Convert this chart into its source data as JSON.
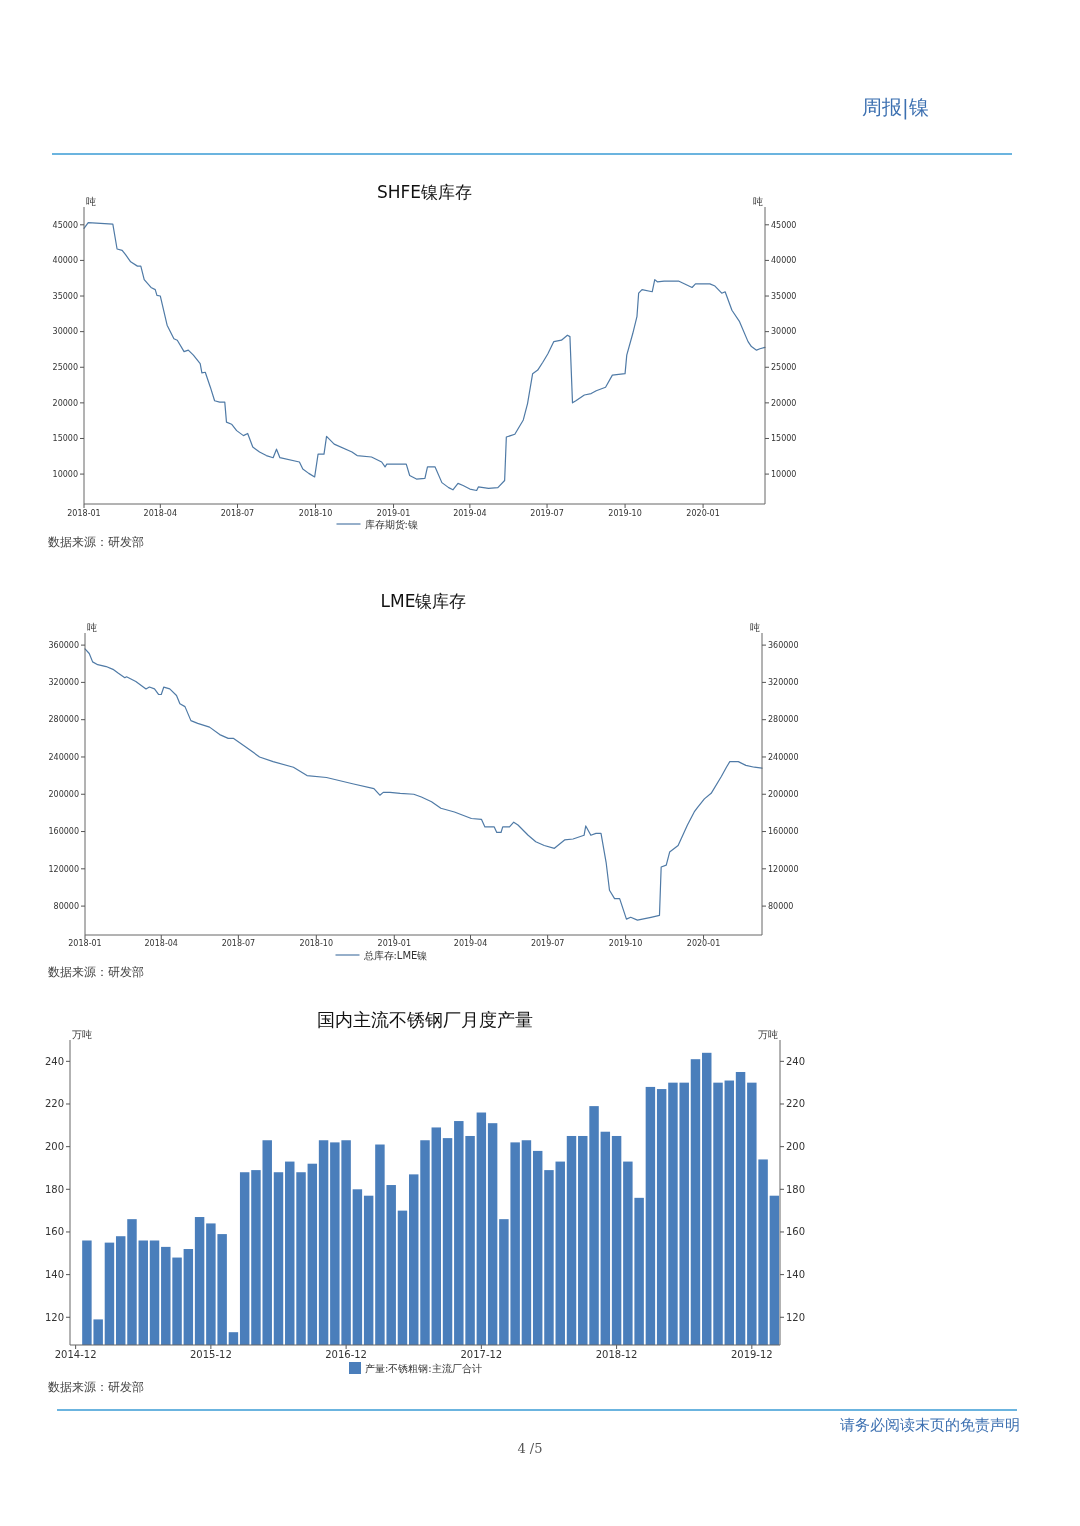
{
  "chart_data": [
    {
      "type": "line",
      "title": "SHFE镍库存",
      "ylabel": "吨",
      "y2label": "吨",
      "legend": "bottom",
      "x": [
        "2018-01-01",
        "2018-01-06",
        "2018-02-04",
        "2018-02-09",
        "2018-02-15",
        "2018-02-19",
        "2018-02-25",
        "2018-03-05",
        "2018-03-09",
        "2018-03-13",
        "2018-03-21",
        "2018-03-26",
        "2018-03-28",
        "2018-04-01",
        "2018-04-09",
        "2018-04-17",
        "2018-04-21",
        "2018-04-29",
        "2018-05-04",
        "2018-05-10",
        "2018-05-18",
        "2018-05-20",
        "2018-05-24",
        "2018-05-30",
        "2018-06-04",
        "2018-06-10",
        "2018-06-16",
        "2018-06-18",
        "2018-06-24",
        "2018-06-30",
        "2018-07-08",
        "2018-07-13",
        "2018-07-19",
        "2018-07-27",
        "2018-08-04",
        "2018-08-12",
        "2018-08-16",
        "2018-08-20",
        "2018-09-12",
        "2018-09-16",
        "2018-09-23",
        "2018-09-30",
        "2018-10-04",
        "2018-10-11",
        "2018-10-14",
        "2018-10-23",
        "2018-11-13",
        "2018-11-19",
        "2018-12-06",
        "2018-12-18",
        "2018-12-22",
        "2018-12-24",
        "2019-01-16",
        "2019-01-20",
        "2019-01-28",
        "2019-02-07",
        "2019-02-10",
        "2019-02-19",
        "2019-02-27",
        "2019-03-07",
        "2019-03-12",
        "2019-03-18",
        "2019-03-24",
        "2019-04-01",
        "2019-04-09",
        "2019-04-11",
        "2019-04-23",
        "2019-05-04",
        "2019-05-12",
        "2019-05-14",
        "2019-05-24",
        "2019-06-03",
        "2019-06-08",
        "2019-06-14",
        "2019-06-20",
        "2019-06-26",
        "2019-07-02",
        "2019-07-09",
        "2019-07-18",
        "2019-07-25",
        "2019-07-28",
        "2019-07-31",
        "2019-08-04",
        "2019-08-14",
        "2019-08-22",
        "2019-08-28",
        "2019-09-08",
        "2019-09-16",
        "2019-10-01",
        "2019-10-03",
        "2019-10-10",
        "2019-10-15",
        "2019-10-17",
        "2019-10-21",
        "2019-11-02",
        "2019-11-05",
        "2019-11-08",
        "2019-11-16",
        "2019-12-03",
        "2019-12-19",
        "2019-12-23",
        "2020-01-09",
        "2020-01-15",
        "2020-01-23",
        "2020-01-27",
        "2020-02-04",
        "2020-02-13",
        "2020-02-23",
        "2020-02-27",
        "2020-03-04",
        "2020-03-08",
        "2020-03-14"
      ],
      "series": [
        {
          "name": "库存期货:镍",
          "color": "#4f7aa6",
          "values": [
            44500,
            45300,
            45100,
            41600,
            41400,
            40800,
            39800,
            39200,
            39200,
            37300,
            36200,
            35900,
            35100,
            35000,
            30900,
            29000,
            28800,
            27200,
            27400,
            26700,
            25500,
            24200,
            24300,
            22200,
            20300,
            20100,
            20100,
            17300,
            17000,
            16100,
            15400,
            15700,
            13800,
            13100,
            12600,
            12300,
            13500,
            12300,
            11700,
            10700,
            10100,
            9600,
            12800,
            12800,
            15300,
            14200,
            13100,
            12600,
            12400,
            11700,
            11000,
            11400,
            11400,
            9800,
            9300,
            9400,
            11000,
            11000,
            8800,
            8100,
            7800,
            8700,
            8400,
            7900,
            7700,
            8200,
            8000,
            8100,
            9100,
            15200,
            15600,
            17600,
            19900,
            24100,
            24600,
            25700,
            26900,
            28600,
            28800,
            29500,
            29300,
            20000,
            20300,
            21100,
            21300,
            21700,
            22200,
            23900,
            24100,
            26700,
            29700,
            32100,
            35400,
            35900,
            35600,
            37300,
            37000,
            37100,
            37100,
            36200,
            36700,
            36700,
            36400,
            35400,
            35600,
            33000,
            31400,
            28600,
            27900,
            27400,
            27600,
            27800
          ]
        }
      ],
      "xlim": [
        "2018-01-01",
        "2020-03-14"
      ],
      "xticks": [
        "2018-01",
        "2018-04",
        "2018-07",
        "2018-10",
        "2019-01",
        "2019-04",
        "2019-07",
        "2019-10",
        "2020-01"
      ],
      "ylim": [
        5800,
        47500
      ],
      "yticks": [
        10000,
        15000,
        20000,
        25000,
        30000,
        35000,
        40000,
        45000
      ],
      "y2lim": [
        5800,
        47500
      ],
      "y2ticks": [
        10000,
        15000,
        20000,
        25000,
        30000,
        35000,
        40000,
        45000
      ],
      "annotations": [
        "周报|镍",
        "数据来源：研发部"
      ]
    },
    {
      "type": "line",
      "title": "LME镍库存",
      "ylabel": "吨",
      "y2label": "吨",
      "legend": "bottom",
      "x": [
        "2018-01-01",
        "2018-01-06",
        "2018-01-10",
        "2018-01-16",
        "2018-01-26",
        "2018-02-03",
        "2018-02-09",
        "2018-02-17",
        "2018-02-19",
        "2018-03-02",
        "2018-03-14",
        "2018-03-18",
        "2018-03-24",
        "2018-03-29",
        "2018-04-01",
        "2018-04-04",
        "2018-04-11",
        "2018-04-19",
        "2018-04-23",
        "2018-04-29",
        "2018-05-06",
        "2018-05-14",
        "2018-05-28",
        "2018-06-09",
        "2018-06-19",
        "2018-06-25",
        "2018-07-11",
        "2018-07-26",
        "2018-08-11",
        "2018-09-04",
        "2018-09-20",
        "2018-10-13",
        "2018-11-14",
        "2018-12-08",
        "2018-12-15",
        "2018-12-19",
        "2018-12-27",
        "2019-01-08",
        "2019-01-24",
        "2019-02-02",
        "2019-02-14",
        "2019-02-25",
        "2019-03-13",
        "2019-04-02",
        "2019-04-14",
        "2019-04-18",
        "2019-04-29",
        "2019-05-02",
        "2019-05-07",
        "2019-05-09",
        "2019-05-17",
        "2019-05-22",
        "2019-05-27",
        "2019-06-08",
        "2019-06-17",
        "2019-06-27",
        "2019-07-09",
        "2019-07-21",
        "2019-07-31",
        "2019-08-13",
        "2019-08-15",
        "2019-08-21",
        "2019-08-27",
        "2019-09-02",
        "2019-09-08",
        "2019-09-12",
        "2019-09-18",
        "2019-09-24",
        "2019-10-02",
        "2019-10-07",
        "2019-10-15",
        "2019-10-31",
        "2019-11-10",
        "2019-11-12",
        "2019-11-18",
        "2019-11-22",
        "2019-12-02",
        "2019-12-13",
        "2019-12-21",
        "2019-12-25",
        "2020-01-02",
        "2020-01-10",
        "2020-01-22",
        "2020-01-28",
        "2020-02-01",
        "2020-02-11",
        "2020-02-20",
        "2020-03-01",
        "2020-03-10"
      ],
      "series": [
        {
          "name": "总库存:LME镍",
          "color": "#4f7aa6",
          "values": [
            356000,
            351000,
            342000,
            339000,
            337000,
            334000,
            330000,
            325000,
            326000,
            321000,
            313000,
            315000,
            313000,
            307000,
            307000,
            315000,
            313000,
            306000,
            297000,
            294000,
            279000,
            276000,
            272000,
            264000,
            260000,
            260000,
            250000,
            240000,
            235000,
            229000,
            220000,
            218000,
            211000,
            206000,
            199000,
            202000,
            202000,
            201000,
            200000,
            197000,
            192000,
            185000,
            181000,
            174000,
            173000,
            165000,
            165000,
            159000,
            159000,
            165000,
            165000,
            170000,
            167000,
            156000,
            149000,
            145000,
            142000,
            151000,
            152000,
            156000,
            166000,
            156000,
            158000,
            158000,
            127000,
            97000,
            88000,
            88000,
            66000,
            68000,
            65000,
            68000,
            70000,
            122000,
            124000,
            138000,
            145000,
            167000,
            181000,
            186000,
            195000,
            201000,
            219000,
            229000,
            235000,
            235000,
            231000,
            229000,
            228000
          ]
        }
      ],
      "xlim": [
        "2018-01-01",
        "2020-03-10"
      ],
      "xticks": [
        "2018-01",
        "2018-04",
        "2018-07",
        "2018-10",
        "2019-01",
        "2019-04",
        "2019-07",
        "2019-10",
        "2020-01"
      ],
      "ylim": [
        49000,
        373000
      ],
      "yticks": [
        80000,
        120000,
        160000,
        200000,
        240000,
        280000,
        320000,
        360000
      ],
      "y2lim": [
        49000,
        373000
      ],
      "y2ticks": [
        80000,
        120000,
        160000,
        200000,
        240000,
        280000,
        320000,
        360000
      ],
      "annotations": [
        "数据来源：研发部"
      ]
    },
    {
      "type": "bar",
      "title": "国内主流不锈钢厂月度产量",
      "ylabel": "万吨",
      "y2label": "万吨",
      "legend": "bottom",
      "categories": [
        "2014-12",
        null,
        null,
        null,
        null,
        null,
        null,
        null,
        null,
        null,
        null,
        null,
        "2015-12",
        null,
        null,
        null,
        null,
        null,
        null,
        null,
        null,
        null,
        null,
        null,
        "2016-12",
        null,
        null,
        null,
        null,
        null,
        null,
        null,
        null,
        null,
        null,
        null,
        "2017-12",
        null,
        null,
        null,
        null,
        null,
        null,
        null,
        null,
        null,
        null,
        null,
        "2018-12",
        null,
        null,
        null,
        null,
        null,
        null,
        null,
        null,
        null,
        null,
        null,
        "2019-12",
        null,
        null
      ],
      "series": [
        {
          "name": "产量:不锈粗钢:主流厂合计",
          "color": "#4a7ebb",
          "values": [
            null,
            156,
            119,
            155,
            158,
            166,
            156,
            156,
            153,
            148,
            152,
            167,
            164,
            159,
            113,
            188,
            189,
            203,
            188,
            193,
            188,
            192,
            203,
            202,
            203,
            180,
            177,
            201,
            182,
            170,
            187,
            203,
            209,
            204,
            212,
            205,
            216,
            211,
            166,
            202,
            203,
            198,
            189,
            193,
            205,
            205,
            219,
            207,
            205,
            193,
            176,
            228,
            227,
            230,
            230,
            241,
            244,
            230,
            231,
            235,
            230,
            194,
            177
          ]
        }
      ],
      "ylim": [
        107,
        250
      ],
      "yticks": [
        120,
        140,
        160,
        180,
        200,
        220,
        240
      ],
      "y2lim": [
        107,
        250
      ],
      "y2ticks": [
        120,
        140,
        160,
        180,
        200,
        220,
        240
      ],
      "annotations": [
        "数据来源：研发部",
        "请务必阅读末页的免责声明",
        "4 /5"
      ]
    }
  ]
}
